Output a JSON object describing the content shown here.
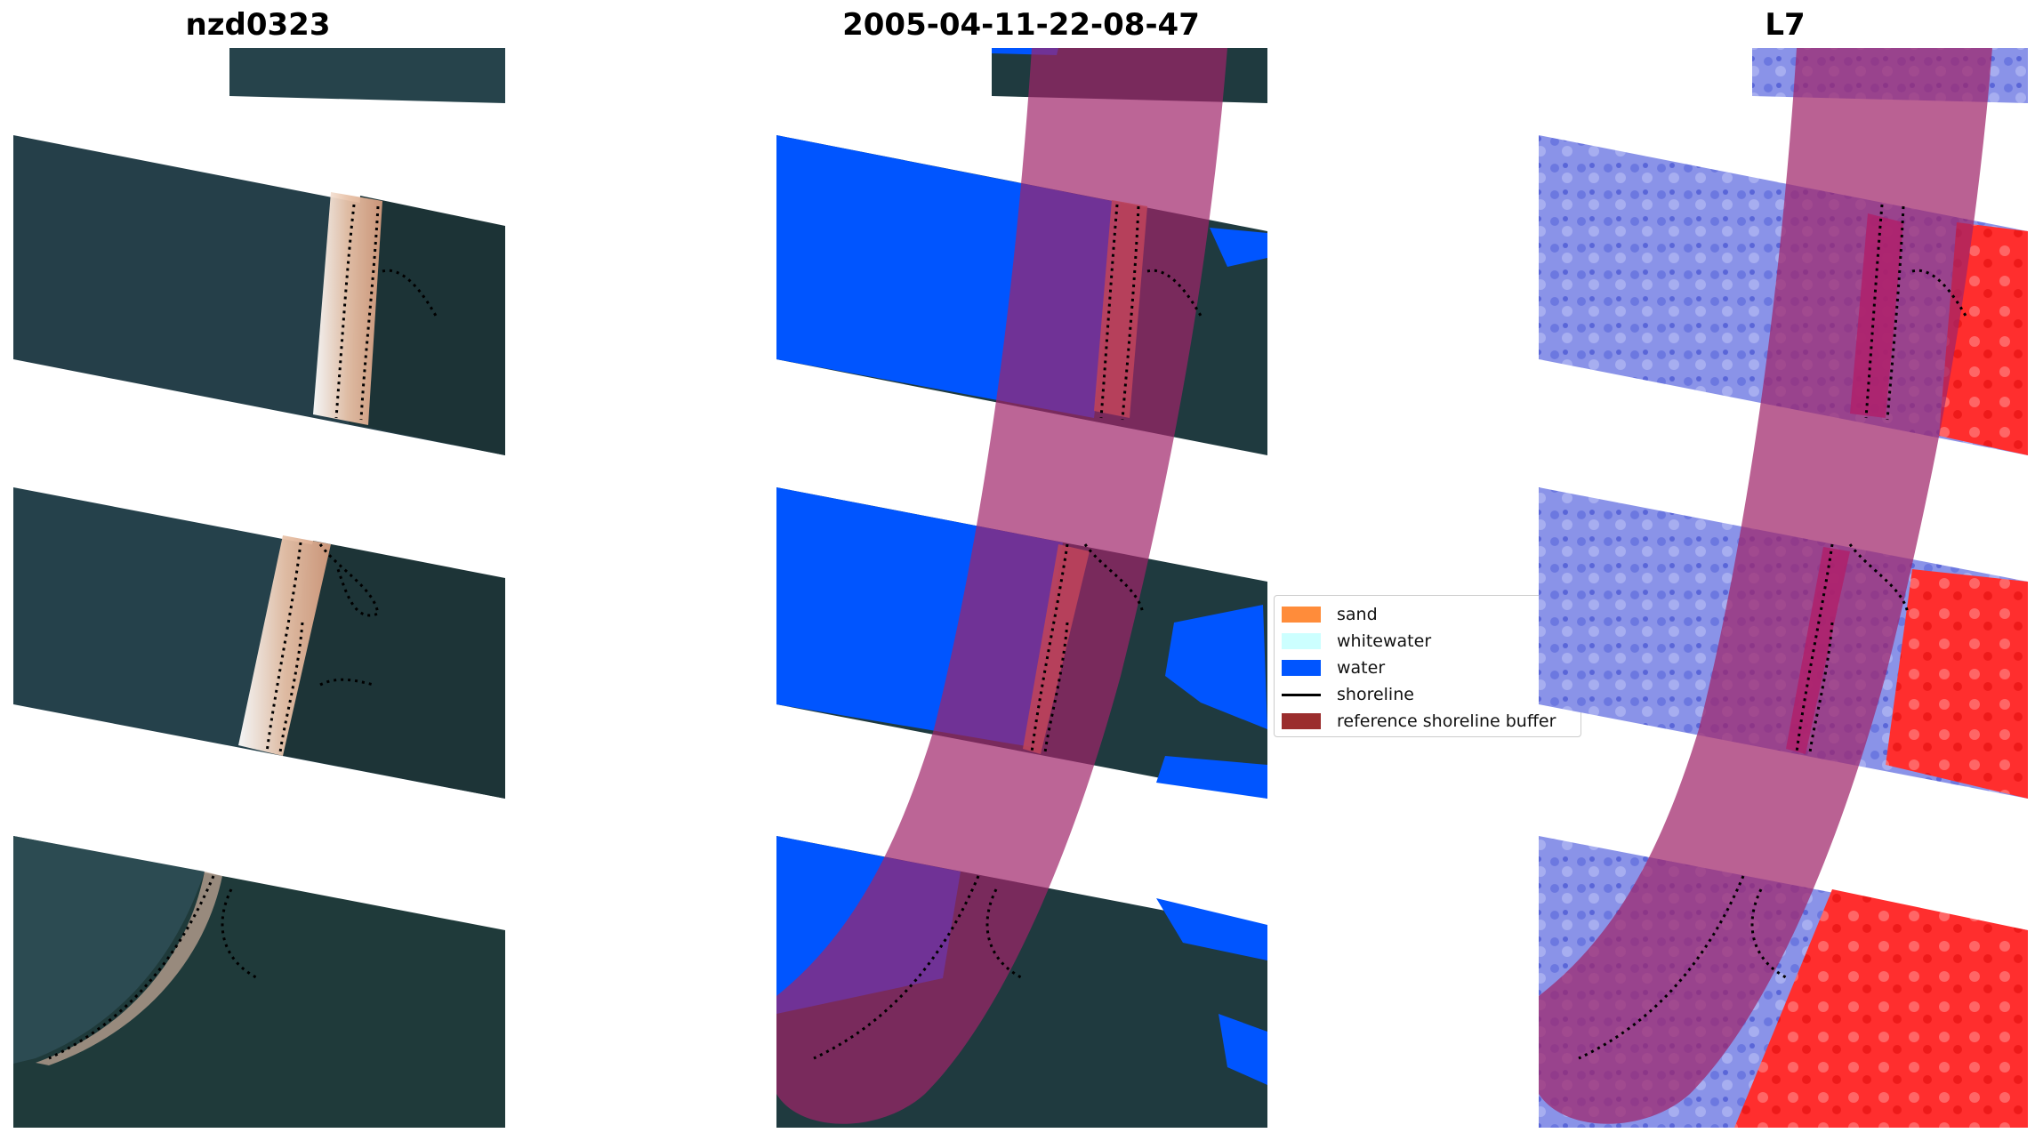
{
  "panels": [
    {
      "title": "nzd0323",
      "kind": "rgb"
    },
    {
      "title": "2005-04-11-22-08-47",
      "kind": "classified"
    },
    {
      "title": "L7",
      "kind": "index"
    }
  ],
  "legend": {
    "items": [
      {
        "label": "sand",
        "color": "#ff8c3a",
        "kind": "patch"
      },
      {
        "label": "whitewater",
        "color": "#ccffff",
        "kind": "patch"
      },
      {
        "label": "water",
        "color": "#0055ff",
        "kind": "patch"
      },
      {
        "label": "shoreline",
        "color": "#000000",
        "kind": "line"
      },
      {
        "label": "reference shoreline buffer",
        "color": "#9b2d2d",
        "kind": "patch"
      }
    ]
  },
  "colors": {
    "land": "#1f3a3f",
    "sea": "#243f4a",
    "water_class": "#0055ff",
    "buffer": "#a0246a",
    "index_water": "#8a93e8",
    "index_land": "#ff2e2e"
  }
}
